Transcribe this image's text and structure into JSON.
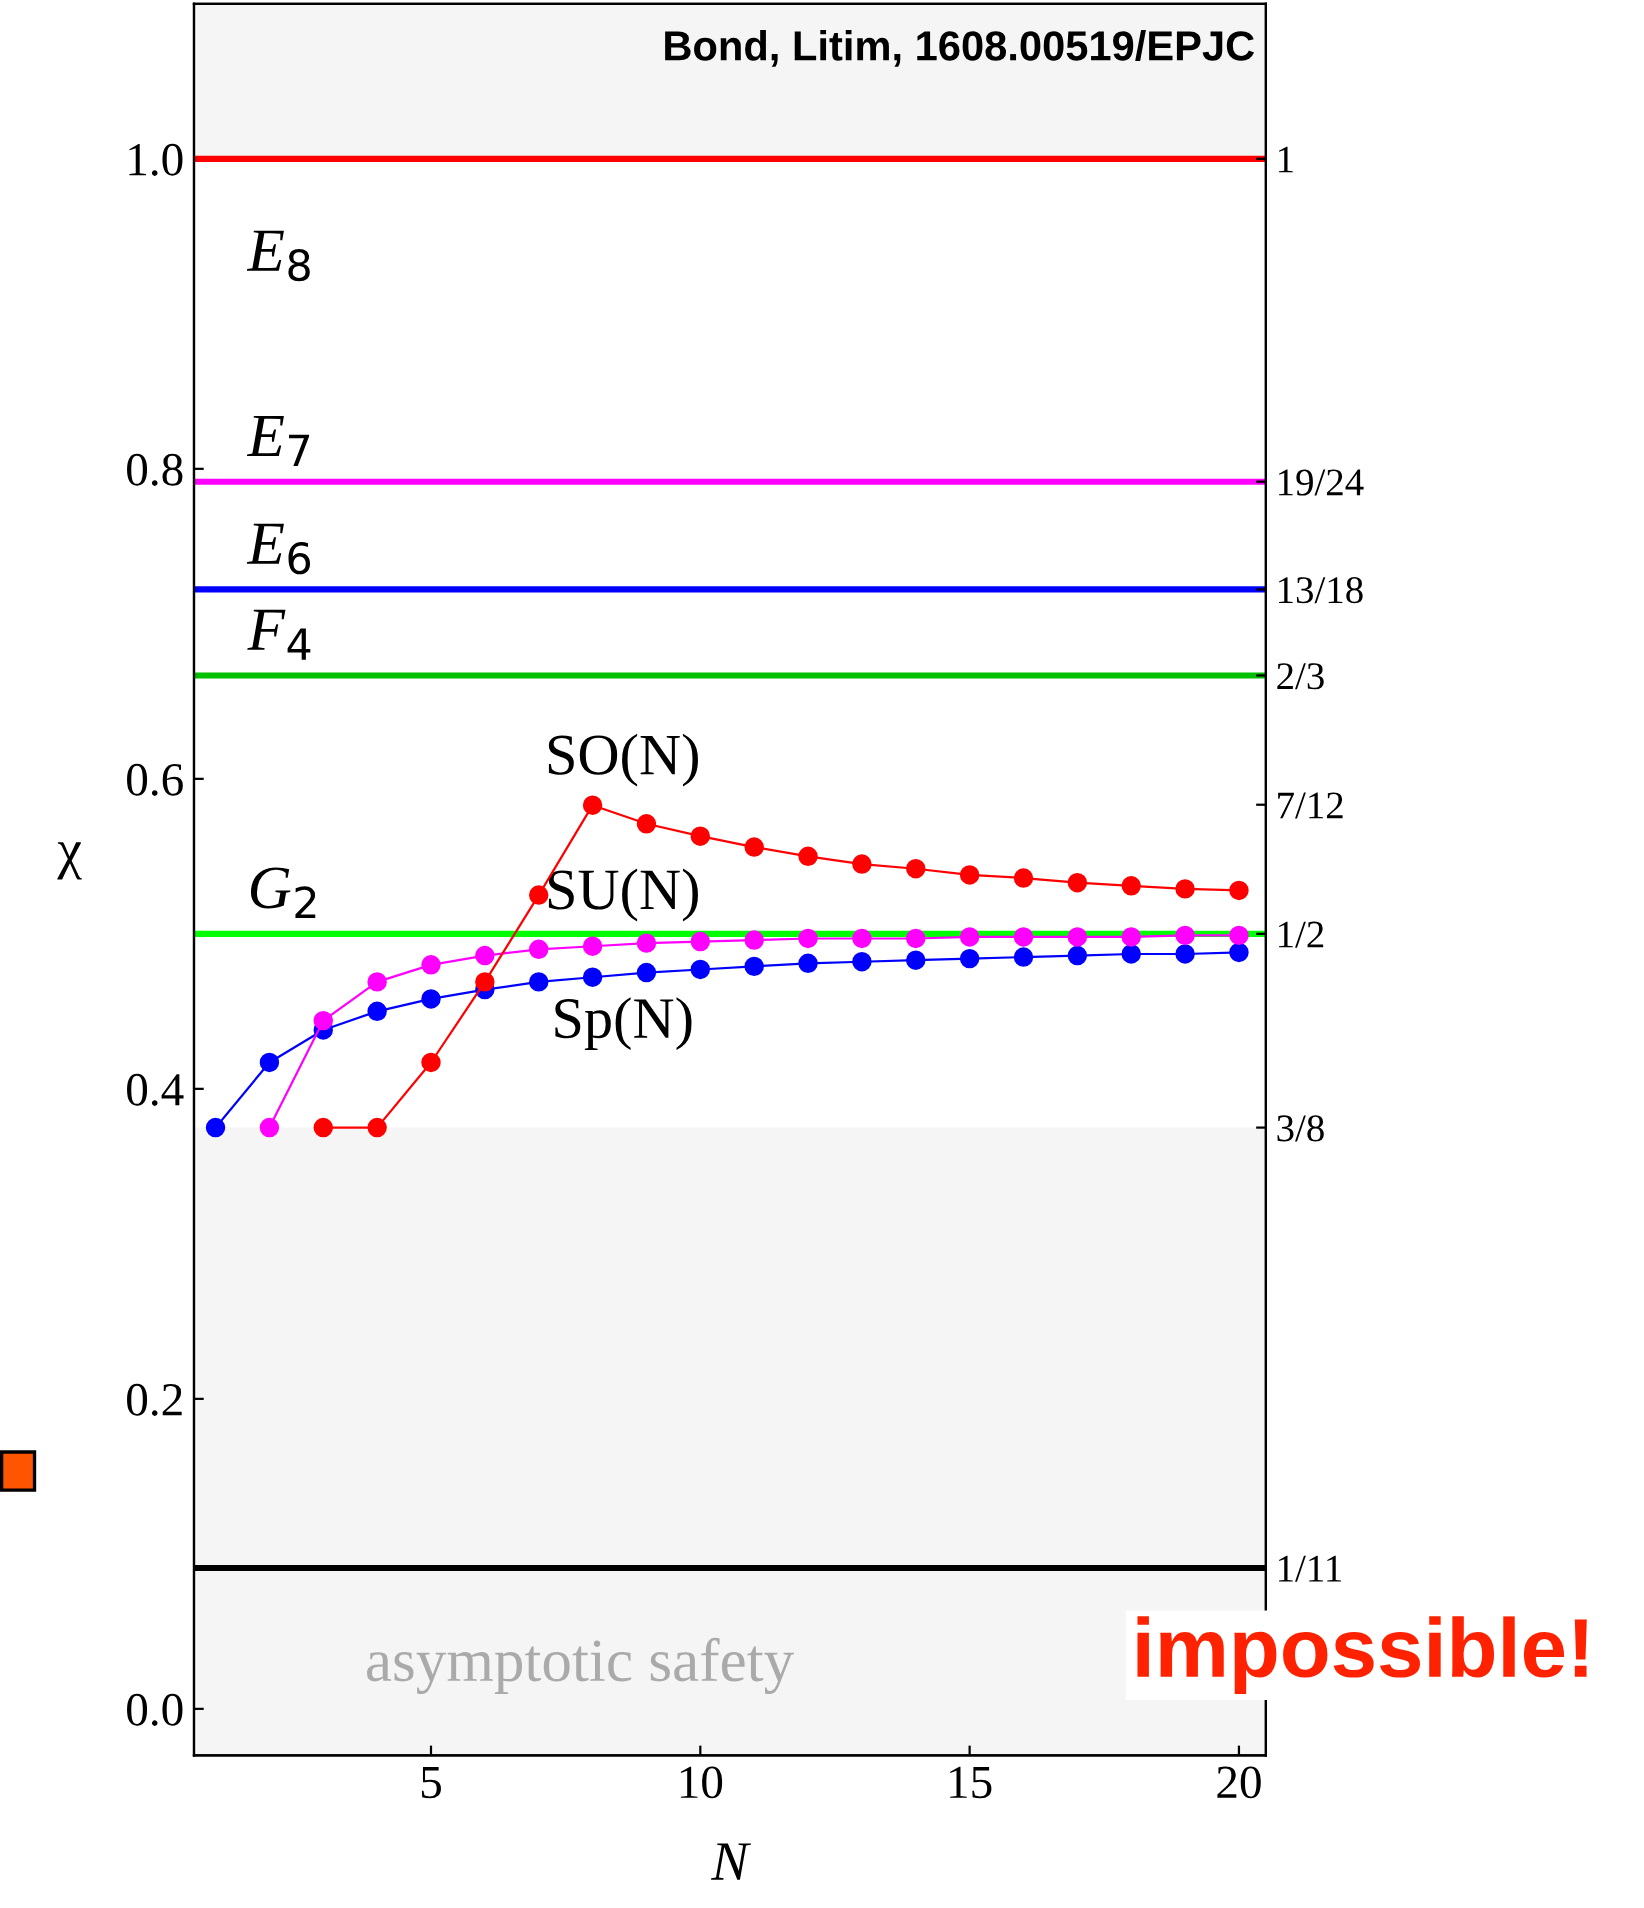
{
  "chart_data": {
    "type": "line",
    "title": "Bond, Litim, 1608.00519/EPJC",
    "xlabel": "N",
    "ylabel": "χ",
    "x": [
      1,
      2,
      3,
      4,
      5,
      6,
      7,
      8,
      9,
      10,
      11,
      12,
      13,
      14,
      15,
      16,
      17,
      18,
      19,
      20
    ],
    "series": [
      {
        "name": "SO(N)",
        "color": "#ff0000",
        "values": [
          null,
          null,
          0.375,
          0.375,
          0.417,
          0.469,
          0.525,
          0.583,
          0.571,
          0.563,
          0.556,
          0.55,
          0.545,
          0.542,
          0.538,
          0.536,
          0.533,
          0.531,
          0.529,
          0.528
        ]
      },
      {
        "name": "SU(N)",
        "color": "#ff00ff",
        "values": [
          null,
          0.375,
          0.444,
          0.469,
          0.48,
          0.486,
          0.49,
          0.492,
          0.494,
          0.495,
          0.496,
          0.497,
          0.497,
          0.497,
          0.498,
          0.498,
          0.498,
          0.498,
          0.499,
          0.499
        ]
      },
      {
        "name": "Sp(N)",
        "color": "#0000ff",
        "values": [
          0.375,
          0.417,
          0.438,
          0.45,
          0.458,
          0.464,
          0.469,
          0.472,
          0.475,
          0.477,
          0.479,
          0.481,
          0.482,
          0.483,
          0.484,
          0.485,
          0.486,
          0.487,
          0.487,
          0.488
        ]
      }
    ],
    "marker": "circle",
    "line_style": "solid",
    "grid": false,
    "xlim": [
      0.6,
      20.5
    ],
    "ylim": [
      -0.03,
      1.1
    ],
    "xticks": [
      5,
      10,
      15,
      20
    ],
    "yticks": [
      {
        "value": 0,
        "label": "0.0"
      },
      0.2,
      0.4,
      0.6,
      0.8,
      {
        "value": 1,
        "label": "1.0"
      }
    ],
    "y2lim": [
      -0.03,
      1.1
    ],
    "y2ticks": [
      1,
      {
        "value": 0.7917,
        "label": "19/24"
      },
      {
        "value": 0.7222,
        "label": "13/18"
      },
      {
        "value": 0.6667,
        "label": "2/3"
      },
      {
        "value": 0.5833,
        "label": "7/12"
      },
      {
        "value": 0.5,
        "label": "1/2"
      },
      {
        "value": 0.375,
        "label": "3/8"
      },
      {
        "value": 0.0909,
        "label": "1/11"
      }
    ],
    "ref_lines": [
      {
        "axis": "y",
        "value": 1,
        "label": "E$_{8}$",
        "color": "#ff0000"
      },
      {
        "axis": "y",
        "value": 0.7917,
        "label": "E$_{7}$",
        "color": "#ff00ff"
      },
      {
        "axis": "y",
        "value": 0.7222,
        "label": "E$_{6}$",
        "color": "#0000ff"
      },
      {
        "axis": "y",
        "value": 0.6667,
        "label": "F$_{4}$",
        "color": "#00c000"
      },
      {
        "axis": "y",
        "value": 0.5,
        "label": "G$_{2}$",
        "color": "#00ff00"
      },
      {
        "axis": "y",
        "value": 0.0909,
        "color": "#000000"
      }
    ],
    "bands": [
      {
        "axis": "y",
        "from": 1,
        "to": 1.1,
        "color": "#f5f5f5"
      },
      {
        "axis": "y",
        "from": -0.03,
        "to": 0.375,
        "color": "#f5f5f5"
      }
    ],
    "annotations": [
      "asymptotic safety",
      "impossible!"
    ]
  }
}
